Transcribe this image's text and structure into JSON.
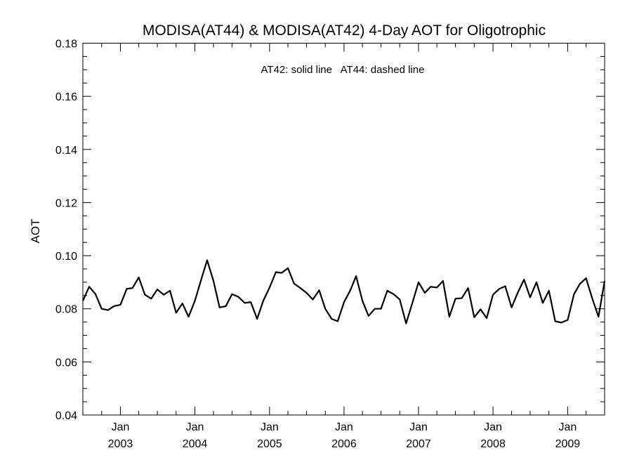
{
  "chart_data": {
    "type": "line",
    "title": "MODISA(AT44) & MODISA(AT42) 4-Day AOT for Oligotrophic",
    "annotation": "AT42: solid line   AT44: dashed line",
    "ylabel": "AOT",
    "xlabel": "",
    "ylim": [
      0.04,
      0.18
    ],
    "xlim": [
      "2002-07-01",
      "2009-07-01"
    ],
    "yticks": [
      "0.04",
      "0.06",
      "0.08",
      "0.10",
      "0.12",
      "0.14",
      "0.16",
      "0.18"
    ],
    "xticks": [
      {
        "date": "2003-01-01",
        "month": "Jan",
        "year": "2003"
      },
      {
        "date": "2004-01-01",
        "month": "Jan",
        "year": "2004"
      },
      {
        "date": "2005-01-01",
        "month": "Jan",
        "year": "2005"
      },
      {
        "date": "2006-01-01",
        "month": "Jan",
        "year": "2006"
      },
      {
        "date": "2007-01-01",
        "month": "Jan",
        "year": "2007"
      },
      {
        "date": "2008-01-01",
        "month": "Jan",
        "year": "2008"
      },
      {
        "date": "2009-01-01",
        "month": "Jan",
        "year": "2009"
      }
    ],
    "grid": false,
    "series": [
      {
        "style": "solid",
        "color": "#000000",
        "x": [
          "2002-07-01",
          "2002-08-01",
          "2002-09-01",
          "2002-10-01",
          "2002-11-01",
          "2002-12-01",
          "2003-01-01",
          "2003-02-01",
          "2003-03-01",
          "2003-04-01",
          "2003-05-01",
          "2003-06-01",
          "2003-07-01",
          "2003-08-01",
          "2003-09-01",
          "2003-10-01",
          "2003-11-01",
          "2003-12-01",
          "2004-01-01",
          "2004-02-01",
          "2004-03-01",
          "2004-04-01",
          "2004-05-01",
          "2004-06-01",
          "2004-07-01",
          "2004-08-01",
          "2004-09-01",
          "2004-10-01",
          "2004-11-01",
          "2004-12-01",
          "2005-01-01",
          "2005-02-01",
          "2005-03-01",
          "2005-04-01",
          "2005-05-01",
          "2005-06-01",
          "2005-07-01",
          "2005-08-01",
          "2005-09-01",
          "2005-10-01",
          "2005-11-01",
          "2005-12-01",
          "2006-01-01",
          "2006-02-01",
          "2006-03-01",
          "2006-04-01",
          "2006-05-01",
          "2006-06-01",
          "2006-07-01",
          "2006-08-01",
          "2006-09-01",
          "2006-10-01",
          "2006-11-01",
          "2006-12-01",
          "2007-01-01",
          "2007-02-01",
          "2007-03-01",
          "2007-04-01",
          "2007-05-01",
          "2007-06-01",
          "2007-07-01",
          "2007-08-01",
          "2007-09-01",
          "2007-10-01",
          "2007-11-01",
          "2007-12-01",
          "2008-01-01",
          "2008-02-01",
          "2008-03-01",
          "2008-04-01",
          "2008-05-01",
          "2008-06-01",
          "2008-07-01",
          "2008-08-01",
          "2008-09-01",
          "2008-10-01",
          "2008-11-01",
          "2008-12-01",
          "2009-01-01",
          "2009-02-01",
          "2009-03-01",
          "2009-04-01",
          "2009-05-01",
          "2009-06-01",
          "2009-07-01"
        ],
        "y": [
          0.083,
          0.0883,
          0.0855,
          0.08,
          0.0795,
          0.081,
          0.0815,
          0.0875,
          0.0878,
          0.0918,
          0.0853,
          0.0838,
          0.0873,
          0.0853,
          0.0868,
          0.0785,
          0.082,
          0.077,
          0.083,
          0.091,
          0.0983,
          0.0905,
          0.0805,
          0.081,
          0.0855,
          0.0845,
          0.0822,
          0.0825,
          0.0762,
          0.083,
          0.088,
          0.0938,
          0.0935,
          0.0953,
          0.0895,
          0.0878,
          0.086,
          0.0835,
          0.087,
          0.08,
          0.0762,
          0.0753,
          0.0825,
          0.087,
          0.0923,
          0.083,
          0.0773,
          0.08,
          0.08,
          0.0868,
          0.0855,
          0.0835,
          0.0745,
          0.082,
          0.09,
          0.086,
          0.0883,
          0.088,
          0.0905,
          0.077,
          0.0838,
          0.084,
          0.0878,
          0.0768,
          0.0798,
          0.0765,
          0.0853,
          0.0875,
          0.0885,
          0.0805,
          0.086,
          0.091,
          0.0843,
          0.09,
          0.0822,
          0.0868,
          0.0753,
          0.0748,
          0.0758,
          0.0855,
          0.0893,
          0.0915,
          0.084,
          0.077,
          0.0905
        ]
      }
    ]
  }
}
